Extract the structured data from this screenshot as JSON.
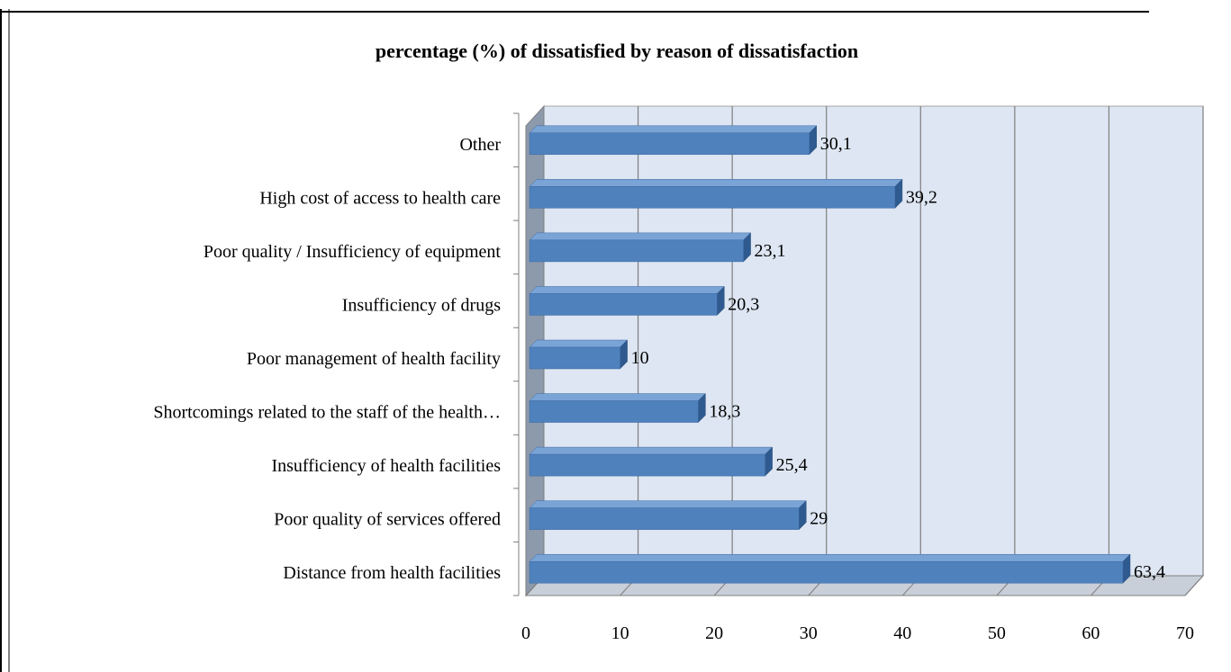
{
  "chart_data": {
    "type": "bar",
    "orientation": "horizontal",
    "title": "percentage (%) of dissatisfied by reason of dissatisfaction",
    "xlabel": "",
    "ylabel": "",
    "categories": [
      "Distance from health facilities",
      "Poor quality of services offered",
      "Insufficiency of health facilities",
      "Shortcomings related to the staff of the health…",
      "Poor management of health facility",
      "Insufficiency of drugs",
      "Poor quality / Insufficiency of equipment",
      "High cost of access to health care",
      "Other"
    ],
    "values": [
      63.4,
      29,
      25.4,
      18.3,
      10,
      20.3,
      23.1,
      39.2,
      30.1
    ],
    "data_labels": [
      "63,4",
      "29",
      "25,4",
      "18,3",
      "10",
      "20,3",
      "23,1",
      "39,2",
      "30,1"
    ],
    "xlim": [
      0,
      70
    ],
    "xticks": [
      0,
      10,
      20,
      30,
      40,
      50,
      60,
      70
    ],
    "xtick_labels": [
      "0",
      "10",
      "20",
      "30",
      "40",
      "50",
      "60",
      "70"
    ],
    "grid": "vertical",
    "legend": "none",
    "style": "3d",
    "colors": {
      "bar_front": "#4f81bd",
      "bar_top": "#7aa3d6",
      "bar_side": "#2f5a8f",
      "plot_back": "#dde6f2",
      "plot_side": "#8c9aab",
      "plot_floor": "#c8cfd9",
      "grid": "#7f7f7f"
    }
  }
}
